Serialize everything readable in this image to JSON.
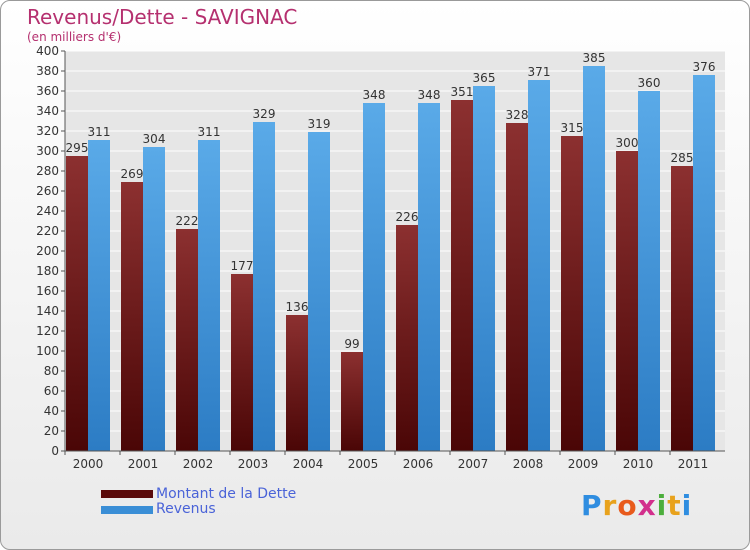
{
  "header": {
    "title": "Revenus/Dette - SAVIGNAC",
    "subtitle": "(en milliers d'€)"
  },
  "legend": {
    "dette_label": "Montant de la Dette",
    "revenus_label": "Revenus"
  },
  "logo": {
    "letters": [
      "P",
      "r",
      "o",
      "x",
      "i",
      "t",
      "i"
    ],
    "colors": [
      "#2f8de0",
      "#e8a21c",
      "#e85a1c",
      "#d22f8c",
      "#4cae3c",
      "#e8a21c",
      "#2f8de0"
    ]
  },
  "colors": {
    "dette": "#6b1414",
    "dette_light": "#8c3030",
    "revenus": "#3a8ed6",
    "revenus_light": "#5aaae8",
    "grid": "#ffffff",
    "axis_text": "#333333"
  },
  "chart_data": {
    "type": "bar",
    "categories": [
      "2000",
      "2001",
      "2002",
      "2003",
      "2004",
      "2005",
      "2006",
      "2007",
      "2008",
      "2009",
      "2010",
      "2011"
    ],
    "series": [
      {
        "name": "Montant de la Dette",
        "values": [
          295,
          269,
          222,
          177,
          136,
          99,
          226,
          351,
          328,
          315,
          300,
          285
        ]
      },
      {
        "name": "Revenus",
        "values": [
          311,
          304,
          311,
          329,
          319,
          348,
          348,
          365,
          371,
          385,
          360,
          376
        ]
      }
    ],
    "ylim": [
      0,
      400
    ],
    "ytick_step": 20,
    "grid": true,
    "legend_position": "bottom-left"
  }
}
